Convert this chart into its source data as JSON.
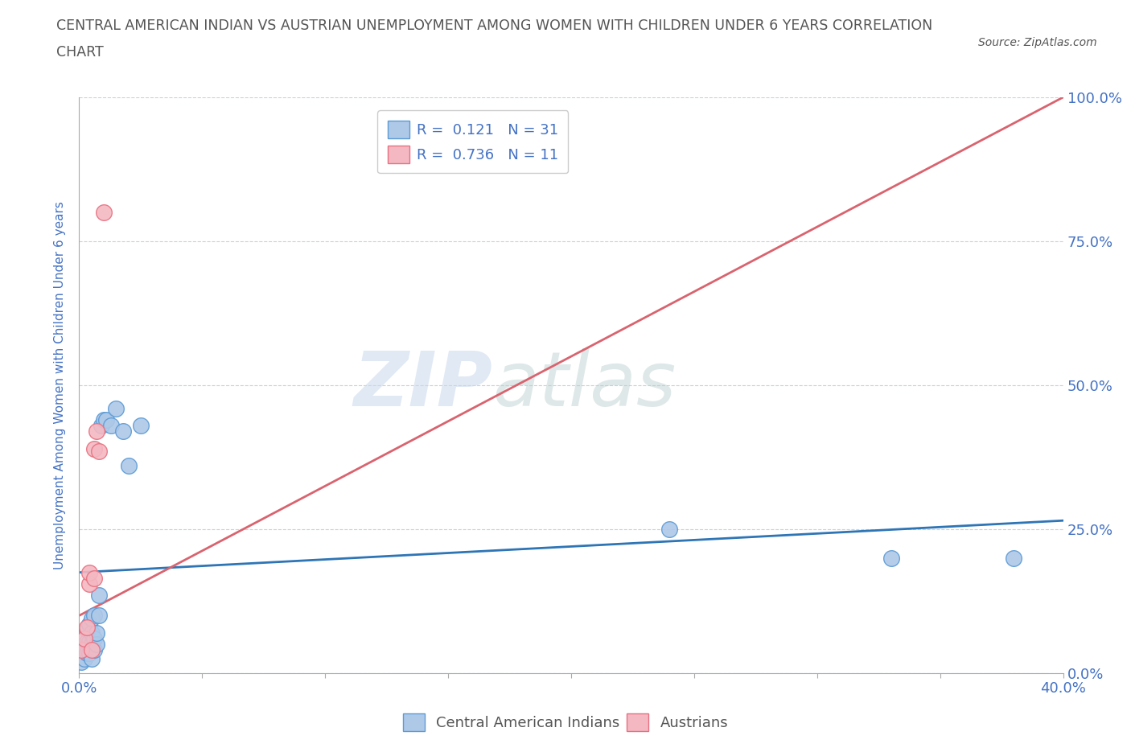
{
  "title_line1": "CENTRAL AMERICAN INDIAN VS AUSTRIAN UNEMPLOYMENT AMONG WOMEN WITH CHILDREN UNDER 6 YEARS CORRELATION",
  "title_line2": "CHART",
  "source": "Source: ZipAtlas.com",
  "ylabel": "Unemployment Among Women with Children Under 6 years",
  "background_color": "#ffffff",
  "watermark_text": "ZIP",
  "watermark_text2": "atlas",
  "blue_scatter_x": [
    0.001,
    0.002,
    0.002,
    0.003,
    0.003,
    0.003,
    0.004,
    0.004,
    0.004,
    0.005,
    0.005,
    0.005,
    0.005,
    0.006,
    0.006,
    0.006,
    0.007,
    0.007,
    0.008,
    0.008,
    0.009,
    0.01,
    0.011,
    0.013,
    0.015,
    0.018,
    0.02,
    0.025,
    0.24,
    0.33,
    0.38
  ],
  "blue_scatter_y": [
    0.02,
    0.025,
    0.045,
    0.035,
    0.055,
    0.075,
    0.035,
    0.055,
    0.085,
    0.025,
    0.05,
    0.07,
    0.095,
    0.04,
    0.06,
    0.1,
    0.05,
    0.07,
    0.1,
    0.135,
    0.43,
    0.44,
    0.44,
    0.43,
    0.46,
    0.42,
    0.36,
    0.43,
    0.25,
    0.2,
    0.2
  ],
  "pink_scatter_x": [
    0.001,
    0.002,
    0.003,
    0.004,
    0.004,
    0.005,
    0.006,
    0.006,
    0.007,
    0.008,
    0.01
  ],
  "pink_scatter_y": [
    0.04,
    0.06,
    0.08,
    0.155,
    0.175,
    0.04,
    0.165,
    0.39,
    0.42,
    0.385,
    0.8
  ],
  "blue_line_x": [
    0.0,
    0.4
  ],
  "blue_line_y": [
    0.175,
    0.265
  ],
  "pink_line_x": [
    0.0,
    0.4
  ],
  "pink_line_y": [
    0.1,
    1.0
  ],
  "blue_color": "#aec8e8",
  "pink_color": "#f4b8c2",
  "blue_marker_edge": "#5b9bd5",
  "pink_marker_edge": "#e87080",
  "blue_line_color": "#2e75b6",
  "pink_line_color": "#d9636e",
  "r_blue": "0.121",
  "n_blue": "31",
  "r_pink": "0.736",
  "n_pink": "11",
  "xlim": [
    0.0,
    0.4
  ],
  "ylim": [
    0.0,
    1.0
  ],
  "xtick_left_label": "0.0%",
  "xtick_right_label": "40.0%",
  "ytick_labels_right": [
    "100.0%",
    "75.0%",
    "50.0%",
    "25.0%",
    "0.0%"
  ],
  "ytick_vals": [
    1.0,
    0.75,
    0.5,
    0.25,
    0.0
  ],
  "ytick_labels_right_ordered": [
    "0.0%",
    "25.0%",
    "50.0%",
    "75.0%",
    "100.0%"
  ],
  "ytick_vals_ordered": [
    0.0,
    0.25,
    0.5,
    0.75,
    1.0
  ],
  "grid_color": "#c8d0e0",
  "legend_label_blue": "Central American Indians",
  "legend_label_pink": "Austrians",
  "title_color": "#555555",
  "axis_label_color": "#4472c4",
  "tick_label_color": "#4472c4",
  "legend_text_color": "#4472c4"
}
